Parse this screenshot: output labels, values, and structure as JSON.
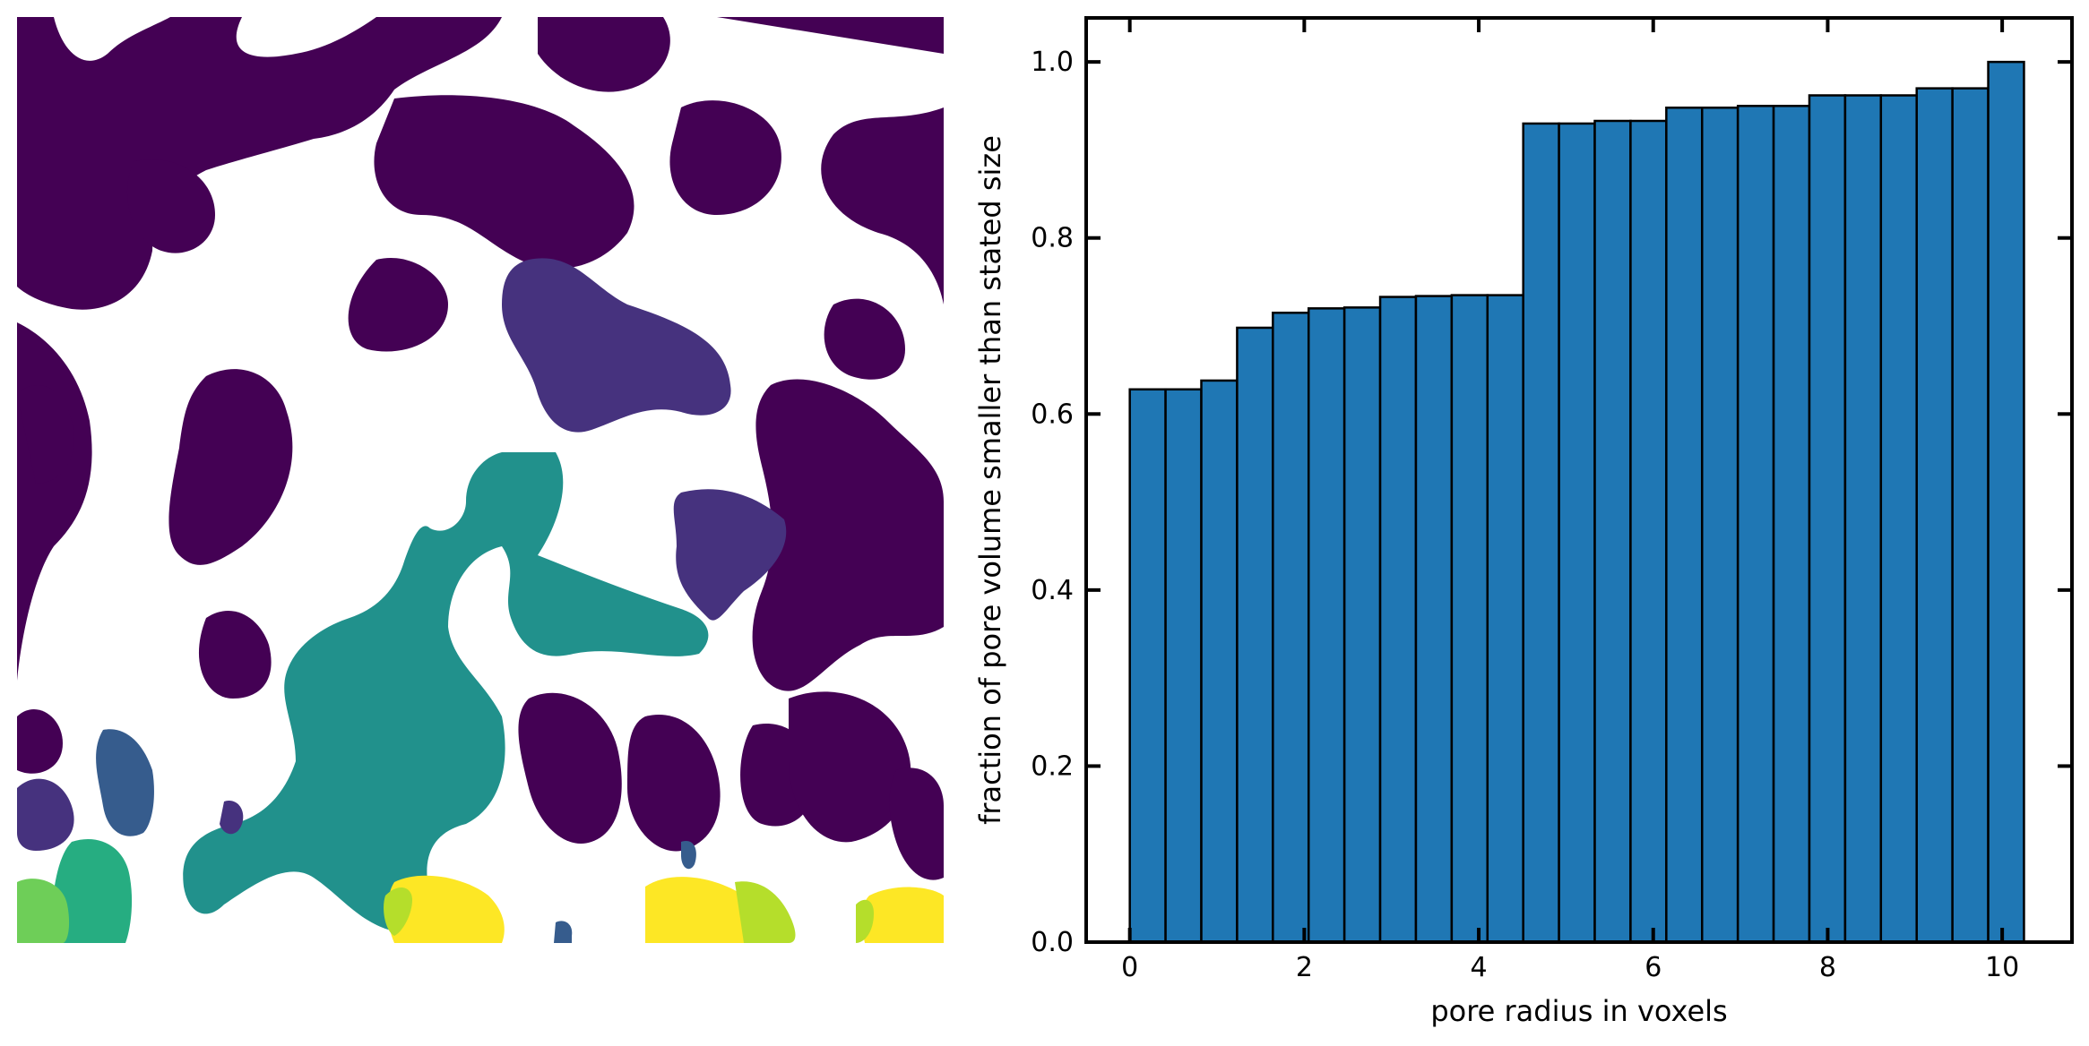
{
  "figure": {
    "left_panel": {
      "kind": "image",
      "description_colormap": "viridis",
      "colors": {
        "background": "#ffffff",
        "solid": "#440154",
        "c1": "#46327e",
        "c2": "#365c8d",
        "c3": "#21918c",
        "c4": "#26ad81",
        "c5": "#6ece58",
        "c6": "#b5de2b",
        "c7": "#fde725"
      }
    }
  },
  "chart_data": {
    "type": "bar",
    "title": "",
    "xlabel": "pore radius in voxels",
    "ylabel": "fraction of pore volume smaller than stated size",
    "xlim": [
      -0.5,
      10.8
    ],
    "ylim": [
      0.0,
      1.05
    ],
    "xticks": [
      "0",
      "2",
      "4",
      "6",
      "8",
      "10"
    ],
    "yticks": [
      "0.0",
      "0.2",
      "0.4",
      "0.6",
      "0.8",
      "1.0"
    ],
    "bar_color": "#1f77b4",
    "edge_color": "#000000",
    "x": [
      0.0,
      0.41,
      0.82,
      1.23,
      1.64,
      2.05,
      2.46,
      2.87,
      3.28,
      3.69,
      4.1,
      4.51,
      4.92,
      5.33,
      5.74,
      6.15,
      6.56,
      6.97,
      7.38,
      7.79,
      8.2,
      8.61,
      9.02,
      9.43,
      9.84
    ],
    "bar_width": 0.41,
    "values": [
      0.628,
      0.628,
      0.638,
      0.698,
      0.715,
      0.72,
      0.721,
      0.733,
      0.734,
      0.735,
      0.735,
      0.93,
      0.93,
      0.933,
      0.933,
      0.948,
      0.948,
      0.95,
      0.95,
      0.962,
      0.962,
      0.962,
      0.97,
      0.97,
      1.0
    ]
  }
}
